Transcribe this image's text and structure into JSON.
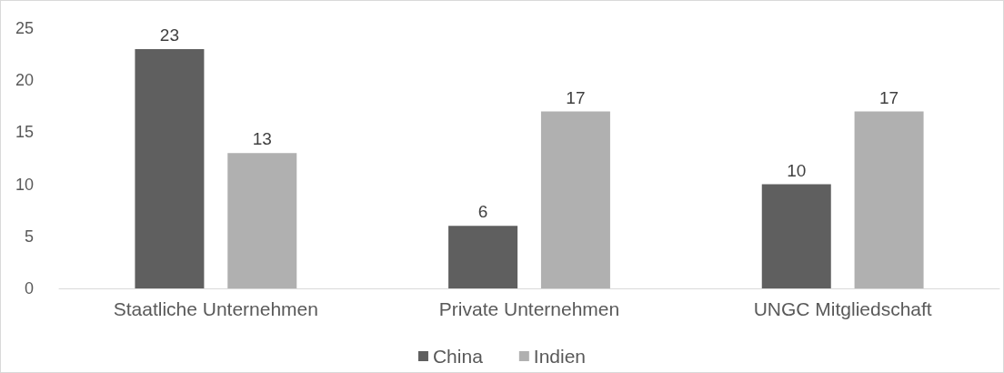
{
  "chart_data": {
    "type": "bar",
    "categories": [
      "Staatliche Unternehmen",
      "Private Unternehmen",
      "UNGC Mitgliedschaft"
    ],
    "series": [
      {
        "name": "China",
        "color": "#5f5f5f",
        "values": [
          23,
          6,
          10
        ]
      },
      {
        "name": "Indien",
        "color": "#b0b0b0",
        "values": [
          13,
          17,
          17
        ]
      }
    ],
    "ylim": [
      0,
      25
    ],
    "yticks": [
      0,
      5,
      10,
      15,
      20,
      25
    ],
    "grid": false,
    "legend": "bottom",
    "data_labels": true
  }
}
